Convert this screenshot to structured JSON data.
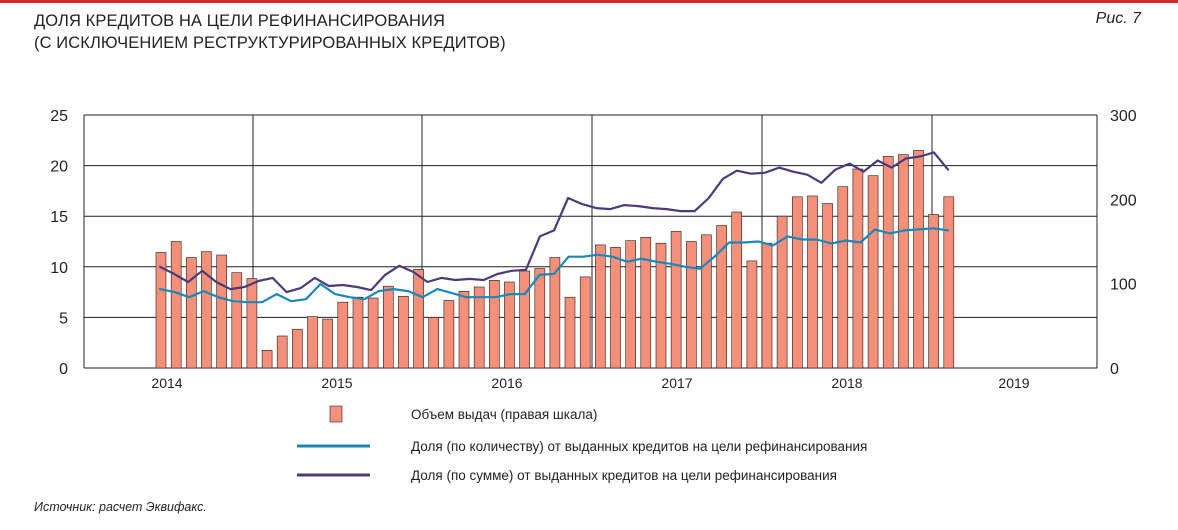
{
  "header": {
    "title_line1": "ДОЛЯ КРЕДИТОВ НА ЦЕЛИ РЕФИНАНСИРОВАНИЯ",
    "title_line2": "(С ИСКЛЮЧЕНИЕМ РЕСТРУКТУРИРОВАННЫХ КРЕДИТОВ)",
    "figure_label": "Рис. 7"
  },
  "source": "Источник: расчет Эквифакс.",
  "colors": {
    "bar_fill": "#f4907a",
    "bar_stroke": "#231f20",
    "count_line": "#1b86b8",
    "sum_line": "#4b3b78",
    "accent_rule": "#d7262e"
  },
  "chart_data": {
    "type": "bar",
    "x_ticks": [
      "2014",
      "2015",
      "2016",
      "2017",
      "2018",
      "2019"
    ],
    "y_left": {
      "lim": [
        0,
        25
      ],
      "ticks": [
        "0",
        "5",
        "10",
        "15",
        "20",
        "25"
      ]
    },
    "y_right": {
      "lim": [
        0,
        300
      ],
      "ticks": [
        "0",
        "100",
        "200",
        "300"
      ]
    },
    "grid": true,
    "legend_position": "bottom",
    "legend": [
      {
        "kind": "bar",
        "label": "Объем выдач (правая шкала)"
      },
      {
        "kind": "line-count",
        "label": "Доля (по количеству) от выданных кредитов на цели рефинансирования"
      },
      {
        "kind": "line-sum",
        "label": "Доля (по сумме) от выданных кредитов на цели рефинансирования"
      }
    ],
    "series": [
      {
        "axis": "right",
        "values": [
          137,
          150,
          131,
          138,
          134,
          113,
          106,
          21,
          38,
          46,
          61,
          58,
          78,
          84,
          83,
          97,
          85,
          117,
          60,
          80,
          91,
          96,
          104,
          102,
          115,
          118,
          131,
          84,
          108,
          146,
          143,
          151,
          155,
          148,
          162,
          150,
          158,
          169,
          185,
          127,
          148,
          180,
          203,
          204,
          195,
          215,
          236,
          228,
          251,
          253,
          258,
          182,
          203
        ]
      },
      {
        "axis": "left",
        "values": [
          7.8,
          7.5,
          7.0,
          7.6,
          7.0,
          6.6,
          6.5,
          6.5,
          7.3,
          6.6,
          6.8,
          8.3,
          7.3,
          7.0,
          6.8,
          7.6,
          7.8,
          7.6,
          7.0,
          7.8,
          7.4,
          7.0,
          7.0,
          7.0,
          7.3,
          7.3,
          9.2,
          9.3,
          11.0,
          11.0,
          11.2,
          11.0,
          10.5,
          10.8,
          10.5,
          10.3,
          10.0,
          9.8,
          11.0,
          12.4,
          12.4,
          12.5,
          12.1,
          13.0,
          12.7,
          12.7,
          12.3,
          12.6,
          12.4,
          13.7,
          13.3,
          13.6,
          13.7,
          13.8,
          13.6
        ]
      },
      {
        "axis": "left",
        "values": [
          10.0,
          9.3,
          8.5,
          9.6,
          8.5,
          7.8,
          8.0,
          8.6,
          8.9,
          7.5,
          7.9,
          8.9,
          8.1,
          8.2,
          8.0,
          7.7,
          9.2,
          10.1,
          9.5,
          8.5,
          8.9,
          8.7,
          8.8,
          8.7,
          9.3,
          9.6,
          9.7,
          13.0,
          13.6,
          16.8,
          16.2,
          15.8,
          15.7,
          16.1,
          16.0,
          15.8,
          15.7,
          15.5,
          15.5,
          16.8,
          18.7,
          19.5,
          19.2,
          19.3,
          19.8,
          19.4,
          19.1,
          18.3,
          19.6,
          20.2,
          19.4,
          20.5,
          19.8,
          20.7,
          20.9,
          21.3,
          19.6
        ]
      }
    ]
  }
}
